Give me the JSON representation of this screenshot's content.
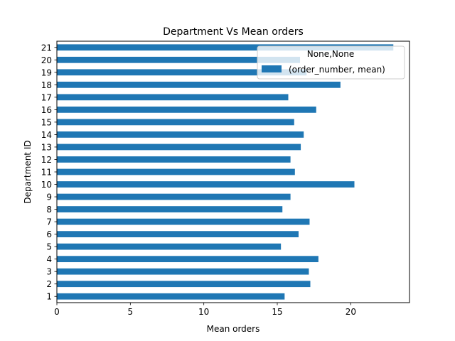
{
  "chart_data": {
    "type": "bar",
    "orientation": "horizontal",
    "title": "Department Vs Mean orders",
    "xlabel": "Mean orders",
    "ylabel": "Department ID",
    "xlim": [
      0,
      24
    ],
    "xticks": [
      0,
      5,
      10,
      15,
      20
    ],
    "grid": false,
    "categories": [
      "1",
      "2",
      "3",
      "4",
      "5",
      "6",
      "7",
      "8",
      "9",
      "10",
      "11",
      "12",
      "13",
      "14",
      "15",
      "16",
      "17",
      "18",
      "19",
      "20",
      "21"
    ],
    "series": [
      {
        "name": "(order_number, mean)",
        "color": "#1f77b4",
        "values": [
          15.5,
          17.25,
          17.15,
          17.8,
          15.25,
          16.45,
          17.2,
          15.35,
          15.9,
          20.25,
          16.2,
          15.9,
          16.6,
          16.8,
          16.15,
          17.65,
          15.75,
          19.3,
          17.0,
          16.55,
          22.9
        ]
      }
    ],
    "legend": {
      "title": "None,None",
      "position": "upper right",
      "entries": [
        "(order_number, mean)"
      ]
    }
  }
}
